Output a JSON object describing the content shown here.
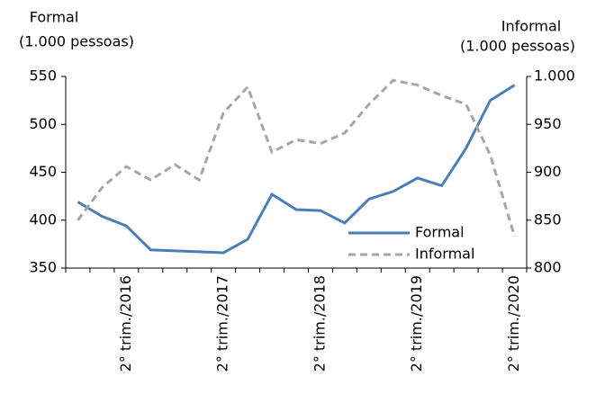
{
  "chart_data": {
    "type": "line",
    "y_label": [
      "Formal",
      "(1.000 pessoas)"
    ],
    "y2_label": [
      "Informal",
      "(1.000 pessoas)"
    ],
    "categories": [
      null,
      null,
      "2° trim./2016",
      null,
      null,
      null,
      "2° trim./2017",
      null,
      null,
      null,
      "2° trim./2018",
      null,
      null,
      null,
      "2° trim./2019",
      null,
      null,
      null,
      "2° trim./2020"
    ],
    "series": [
      {
        "name": "Formal",
        "color": "#4a7ebb",
        "dashed": false,
        "values": [
          419,
          404,
          394,
          369,
          368,
          367,
          366,
          380,
          427,
          411,
          410,
          397,
          422,
          430,
          444,
          436,
          475,
          525,
          541
        ]
      },
      {
        "name": "Informal",
        "color": "#a6a6a6",
        "dashed": true,
        "axis": "y2",
        "values": [
          850,
          884,
          906,
          892,
          908,
          892,
          962,
          989,
          921,
          934,
          930,
          941,
          971,
          996,
          991,
          980,
          971,
          918,
          833
        ]
      }
    ],
    "ylim": [
      350,
      550
    ],
    "yticks": [
      350,
      400,
      450,
      500,
      550
    ],
    "y2lim": [
      800,
      1000
    ],
    "y2ticks": [
      800,
      850,
      900,
      950,
      {
        "value": 1000,
        "label": "1.000"
      }
    ],
    "legend": "lower-right"
  }
}
